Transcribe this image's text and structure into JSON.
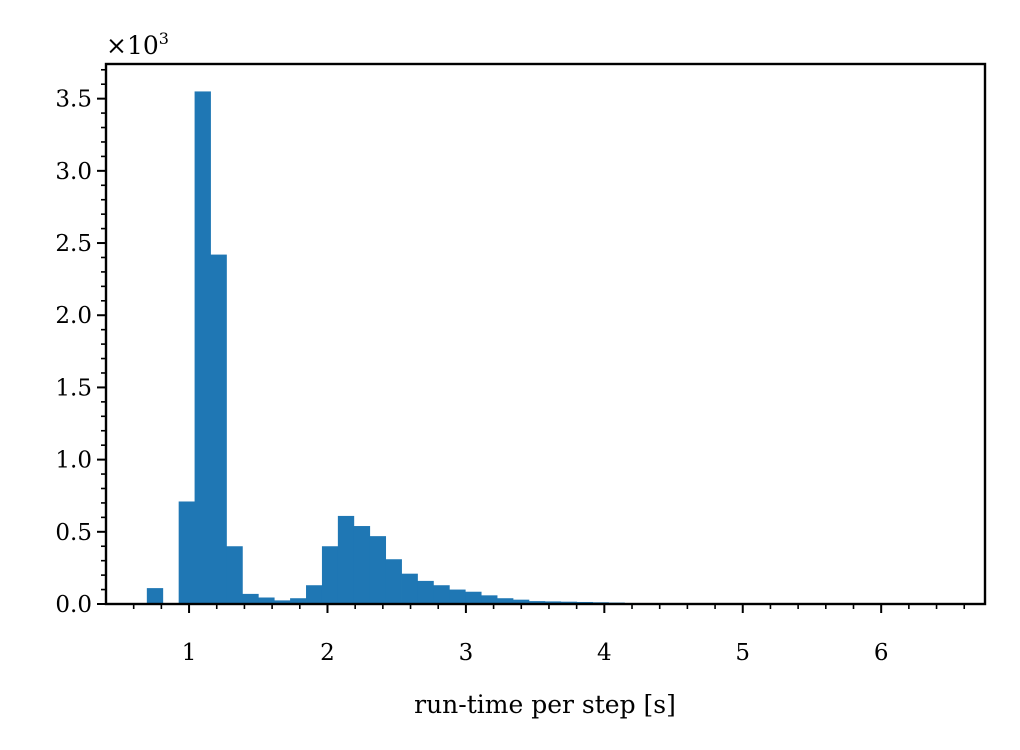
{
  "chart_data": {
    "type": "bar",
    "title": "",
    "xlabel": "run-time per step [s]",
    "ylabel": "",
    "y_multiplier": "×10",
    "y_multiplier_exp": "3",
    "xlim": [
      0.4,
      6.75
    ],
    "ylim": [
      0,
      3.74
    ],
    "bin_width": 0.115,
    "bin_start": 0.695,
    "x_ticks": [
      1,
      2,
      3,
      4,
      5,
      6
    ],
    "y_ticks": [
      0.0,
      0.5,
      1.0,
      1.5,
      2.0,
      2.5,
      3.0,
      3.5
    ],
    "x_tick_labels": [
      "1",
      "2",
      "3",
      "4",
      "5",
      "6"
    ],
    "y_tick_labels": [
      "0.0",
      "0.5",
      "1.0",
      "1.5",
      "2.0",
      "2.5",
      "3.0",
      "3.5"
    ],
    "values": [
      0.11,
      0.0,
      0.71,
      3.55,
      2.42,
      0.4,
      0.07,
      0.045,
      0.025,
      0.04,
      0.13,
      0.4,
      0.61,
      0.54,
      0.47,
      0.31,
      0.21,
      0.16,
      0.13,
      0.1,
      0.085,
      0.06,
      0.04,
      0.03,
      0.02,
      0.018,
      0.016,
      0.014,
      0.012,
      0.01,
      0.007,
      0.006,
      0.005,
      0.004,
      0.004,
      0.003,
      0.003,
      0.003,
      0.002,
      0.002,
      0.002,
      0.002,
      0.002,
      0.002,
      0.002,
      0.002,
      0.002,
      0.002,
      0.002,
      0.002,
      0.002,
      0.001
    ],
    "grid": false,
    "colors": {
      "bar": "#1f77b4",
      "axis": "#000000"
    }
  }
}
